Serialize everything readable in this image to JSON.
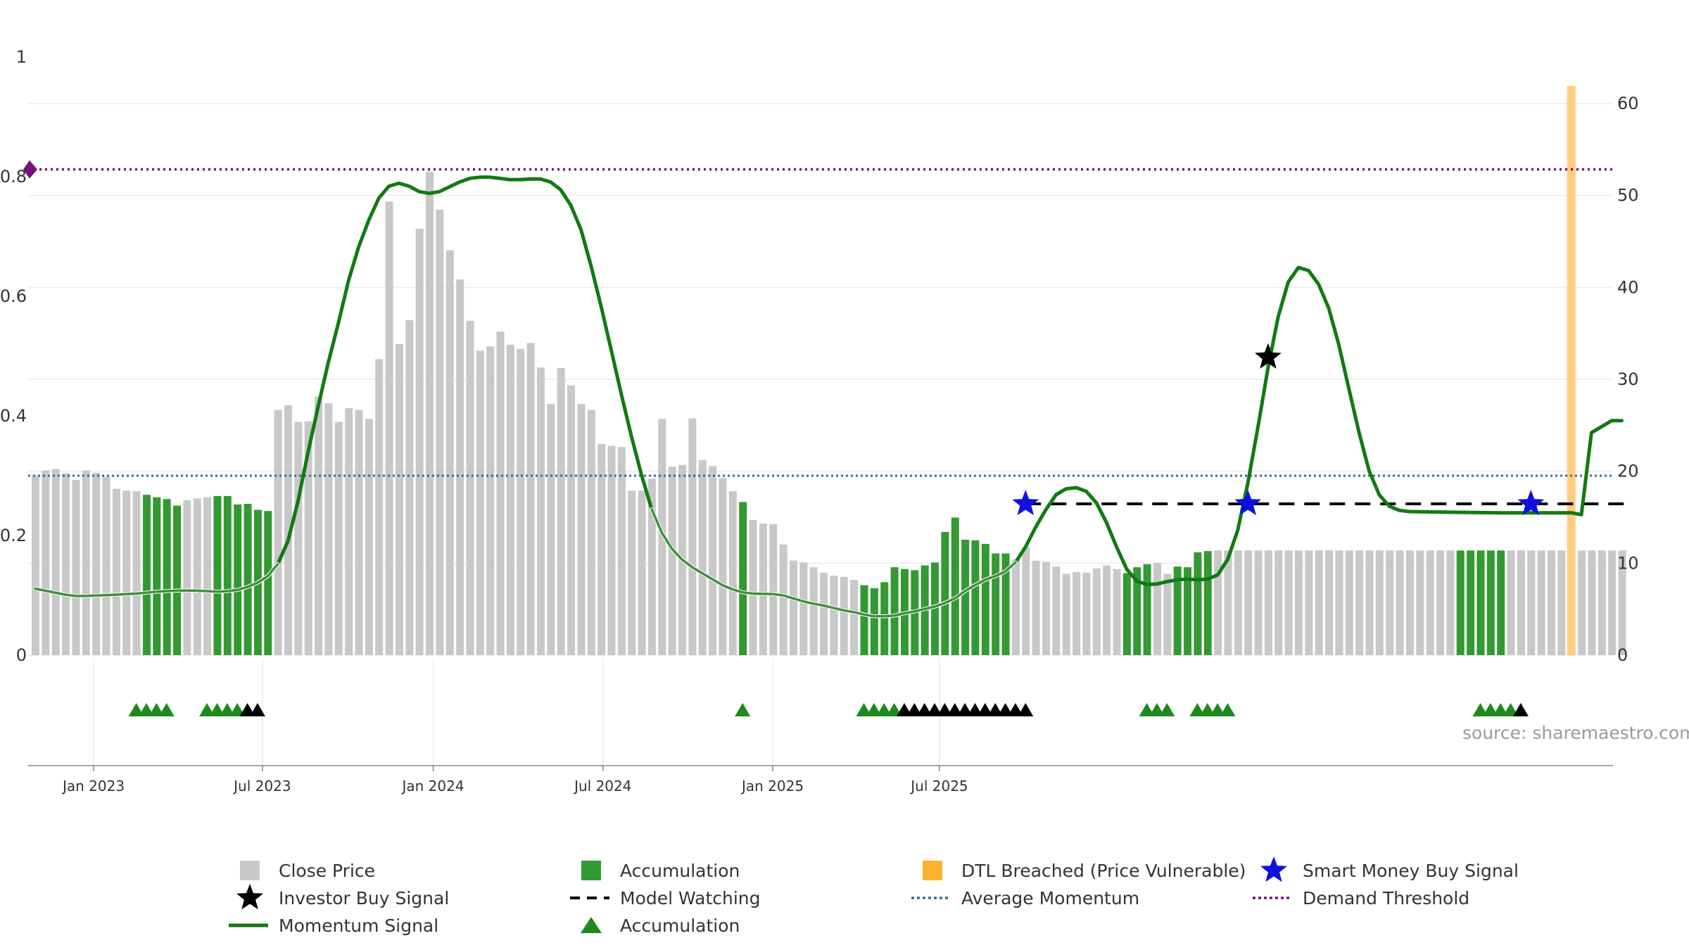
{
  "chart_data": {
    "type": "bar",
    "source_text": "source: sharemaestro.com",
    "left_axis": {
      "ticks": [
        "0",
        "0.2",
        "0.4",
        "0.6",
        "0.8",
        "1"
      ],
      "range": [
        0,
        1
      ]
    },
    "right_axis": {
      "ticks": [
        "0",
        "10",
        "20",
        "30",
        "40",
        "50",
        "60"
      ],
      "range": [
        0,
        60
      ]
    },
    "x_axis": {
      "ticks": [
        "Jan 2023",
        "Jul 2023",
        "Jan 2024",
        "Jul 2024",
        "Jan 2025",
        "Jul 2025"
      ]
    },
    "colors": {
      "close_price": "#c8c8c8",
      "accumulation": "#339933",
      "dtl_breached": "#ffcc80",
      "momentum": "#117a11",
      "average_momentum": "#2e6e96",
      "demand_threshold": "#77107a",
      "smart_money": "#1010dd",
      "investor": "#000000"
    },
    "bars": {
      "values": [
        0.3,
        0.309,
        0.311,
        0.304,
        0.293,
        0.309,
        0.305,
        0.298,
        0.278,
        0.275,
        0.274,
        0.268,
        0.264,
        0.261,
        0.25,
        0.259,
        0.262,
        0.264,
        0.266,
        0.266,
        0.252,
        0.253,
        0.243,
        0.241,
        0.41,
        0.418,
        0.39,
        0.391,
        0.432,
        0.421,
        0.39,
        0.413,
        0.41,
        0.395,
        0.495,
        0.758,
        0.52,
        0.56,
        0.713,
        0.808,
        0.745,
        0.677,
        0.628,
        0.559,
        0.509,
        0.516,
        0.541,
        0.519,
        0.512,
        0.522,
        0.481,
        0.42,
        0.48,
        0.451,
        0.42,
        0.41,
        0.353,
        0.35,
        0.348,
        0.275,
        0.275,
        0.295,
        0.395,
        0.315,
        0.318,
        0.396,
        0.326,
        0.316,
        0.296,
        0.274,
        0.256,
        0.226,
        0.22,
        0.219,
        0.185,
        0.158,
        0.155,
        0.147,
        0.138,
        0.133,
        0.131,
        0.126,
        0.117,
        0.112,
        0.122,
        0.147,
        0.144,
        0.142,
        0.15,
        0.155,
        0.206,
        0.23,
        0.193,
        0.192,
        0.186,
        0.17,
        0.17,
        0.16,
        0.18,
        0.158,
        0.156,
        0.148,
        0.136,
        0.139,
        0.138,
        0.145,
        0.15,
        0.144,
        0.137,
        0.147,
        0.152,
        0.154,
        0.136,
        0.148,
        0.147,
        0.172,
        0.174,
        0.175,
        0.175,
        0.175,
        0.175,
        0.175,
        0.175,
        0.175,
        0.175,
        0.175,
        0.175,
        0.175,
        0.175,
        0.175,
        0.175,
        0.175,
        0.175,
        0.175,
        0.175,
        0.175,
        0.175,
        0.175,
        0.175,
        0.175,
        0.175,
        0.175,
        0.175,
        0.175,
        0.175,
        0.175,
        0.175,
        0.175,
        0.175,
        0.175,
        0.175,
        0.175,
        0.175,
        0.175,
        0.175,
        0.175,
        0.175,
        0.175
      ],
      "accumulation_flags": [
        0,
        0,
        0,
        0,
        0,
        0,
        0,
        0,
        0,
        0,
        0,
        1,
        1,
        1,
        1,
        0,
        0,
        0,
        1,
        1,
        1,
        1,
        1,
        1,
        0,
        0,
        0,
        0,
        0,
        0,
        0,
        0,
        0,
        0,
        0,
        0,
        0,
        0,
        0,
        0,
        0,
        0,
        0,
        0,
        0,
        0,
        0,
        0,
        0,
        0,
        0,
        0,
        0,
        0,
        0,
        0,
        0,
        0,
        0,
        0,
        0,
        0,
        0,
        0,
        0,
        0,
        0,
        0,
        0,
        0,
        1,
        0,
        0,
        0,
        0,
        0,
        0,
        0,
        0,
        0,
        0,
        0,
        1,
        1,
        1,
        1,
        1,
        1,
        1,
        1,
        1,
        1,
        1,
        1,
        1,
        1,
        1,
        0,
        0,
        0,
        0,
        0,
        0,
        0,
        0,
        0,
        0,
        0,
        1,
        1,
        1,
        0,
        0,
        1,
        1,
        1,
        1,
        0,
        0,
        0,
        0,
        0,
        0,
        0,
        0,
        0,
        0,
        0,
        0,
        0,
        0,
        0,
        0,
        0,
        0,
        0,
        0,
        0,
        0,
        0,
        0,
        1,
        1,
        1,
        1,
        1,
        0,
        0,
        0,
        0,
        0,
        0,
        0,
        0,
        0,
        0
      ],
      "dtl_breached_index": 152
    },
    "momentum_signal": [
      [
        0,
        0.111
      ],
      [
        3,
        0.101
      ],
      [
        4,
        0.099
      ],
      [
        5,
        0.099
      ],
      [
        8,
        0.101
      ],
      [
        9,
        0.102
      ],
      [
        10,
        0.103
      ],
      [
        12,
        0.106
      ],
      [
        14,
        0.108
      ],
      [
        16,
        0.108
      ],
      [
        18,
        0.106
      ],
      [
        19,
        0.107
      ],
      [
        20,
        0.109
      ],
      [
        21,
        0.114
      ],
      [
        22,
        0.121
      ],
      [
        23,
        0.132
      ],
      [
        24,
        0.152
      ],
      [
        25,
        0.19
      ],
      [
        26,
        0.257
      ],
      [
        27,
        0.339
      ],
      [
        28,
        0.416
      ],
      [
        29,
        0.489
      ],
      [
        30,
        0.555
      ],
      [
        31,
        0.626
      ],
      [
        32,
        0.682
      ],
      [
        33,
        0.727
      ],
      [
        34,
        0.764
      ],
      [
        35,
        0.784
      ],
      [
        36,
        0.789
      ],
      [
        37,
        0.784
      ],
      [
        38,
        0.775
      ],
      [
        39,
        0.772
      ],
      [
        40,
        0.775
      ],
      [
        41,
        0.783
      ],
      [
        42,
        0.791
      ],
      [
        43,
        0.797
      ],
      [
        44,
        0.799
      ],
      [
        45,
        0.799
      ],
      [
        46,
        0.797
      ],
      [
        47,
        0.795
      ],
      [
        48,
        0.795
      ],
      [
        49,
        0.796
      ],
      [
        50,
        0.796
      ],
      [
        51,
        0.791
      ],
      [
        52,
        0.778
      ],
      [
        53,
        0.752
      ],
      [
        54,
        0.712
      ],
      [
        55,
        0.651
      ],
      [
        56,
        0.583
      ],
      [
        57,
        0.51
      ],
      [
        58,
        0.436
      ],
      [
        59,
        0.366
      ],
      [
        60,
        0.301
      ],
      [
        61,
        0.244
      ],
      [
        62,
        0.205
      ],
      [
        63,
        0.178
      ],
      [
        64,
        0.16
      ],
      [
        65,
        0.147
      ],
      [
        66,
        0.137
      ],
      [
        67,
        0.127
      ],
      [
        68,
        0.117
      ],
      [
        69,
        0.11
      ],
      [
        70,
        0.105
      ],
      [
        71,
        0.103
      ],
      [
        73,
        0.102
      ],
      [
        74,
        0.1
      ],
      [
        75,
        0.095
      ],
      [
        76,
        0.09
      ],
      [
        77,
        0.086
      ],
      [
        78,
        0.083
      ],
      [
        79,
        0.079
      ],
      [
        80,
        0.075
      ],
      [
        81,
        0.072
      ],
      [
        82,
        0.068
      ],
      [
        83,
        0.065
      ],
      [
        84,
        0.065
      ],
      [
        85,
        0.066
      ],
      [
        86,
        0.07
      ],
      [
        87,
        0.073
      ],
      [
        88,
        0.077
      ],
      [
        89,
        0.081
      ],
      [
        90,
        0.087
      ],
      [
        91,
        0.095
      ],
      [
        92,
        0.107
      ],
      [
        93,
        0.117
      ],
      [
        94,
        0.126
      ],
      [
        95,
        0.132
      ],
      [
        96,
        0.14
      ],
      [
        97,
        0.155
      ],
      [
        98,
        0.181
      ],
      [
        99,
        0.214
      ],
      [
        100,
        0.243
      ],
      [
        101,
        0.268
      ],
      [
        102,
        0.278
      ],
      [
        103,
        0.28
      ],
      [
        104,
        0.274
      ],
      [
        105,
        0.255
      ],
      [
        106,
        0.222
      ],
      [
        107,
        0.181
      ],
      [
        108,
        0.144
      ],
      [
        109,
        0.124
      ],
      [
        110,
        0.118
      ],
      [
        111,
        0.119
      ],
      [
        112,
        0.123
      ],
      [
        113,
        0.126
      ],
      [
        114,
        0.127
      ],
      [
        115,
        0.126
      ],
      [
        116,
        0.127
      ],
      [
        117,
        0.134
      ],
      [
        118,
        0.16
      ],
      [
        119,
        0.209
      ],
      [
        120,
        0.288
      ],
      [
        121,
        0.382
      ],
      [
        122,
        0.481
      ],
      [
        123,
        0.566
      ],
      [
        124,
        0.624
      ],
      [
        125,
        0.648
      ],
      [
        126,
        0.643
      ],
      [
        127,
        0.62
      ],
      [
        128,
        0.58
      ],
      [
        129,
        0.519
      ],
      [
        130,
        0.445
      ],
      [
        131,
        0.372
      ],
      [
        132,
        0.308
      ],
      [
        133,
        0.268
      ],
      [
        134,
        0.249
      ],
      [
        135,
        0.242
      ],
      [
        136,
        0.24
      ],
      [
        140,
        0.239
      ],
      [
        145,
        0.238
      ],
      [
        152,
        0.238
      ],
      [
        153,
        0.235
      ],
      [
        154,
        0.372
      ],
      [
        155,
        0.382
      ],
      [
        156,
        0.392
      ],
      [
        157,
        0.392
      ]
    ],
    "average_momentum": 0.3,
    "demand_threshold": 0.812,
    "model_watching": {
      "from_index": 98,
      "to_index": 157,
      "value": 0.253
    },
    "smart_money_buy_signals": [
      [
        98,
        0.253
      ],
      [
        120,
        0.253
      ],
      [
        148,
        0.253
      ]
    ],
    "investor_buy_signals": [
      [
        122,
        0.498
      ]
    ],
    "accumulation_markers": {
      "green": [
        10,
        11,
        12,
        13,
        17,
        18,
        19,
        20,
        70,
        82,
        83,
        84,
        85,
        110,
        111,
        112,
        115,
        116,
        117,
        118,
        143,
        144,
        145,
        146
      ],
      "black": [
        21,
        22,
        86,
        87,
        88,
        89,
        90,
        91,
        92,
        93,
        94,
        95,
        96,
        97,
        98,
        147
      ]
    },
    "legend": [
      {
        "label": "Close Price",
        "symbol": "square-gray"
      },
      {
        "label": "Accumulation",
        "symbol": "square-green"
      },
      {
        "label": "DTL Breached (Price Vulnerable)",
        "symbol": "square-orange"
      },
      {
        "label": "Smart Money Buy Signal",
        "symbol": "star-blue"
      },
      {
        "label": "Investor Buy Signal",
        "symbol": "star-black"
      },
      {
        "label": "Model Watching",
        "symbol": "dashed-black"
      },
      {
        "label": "Average Momentum",
        "symbol": "dotted-blue"
      },
      {
        "label": "Demand Threshold",
        "symbol": "dotted-purple"
      },
      {
        "label": "Momentum Signal",
        "symbol": "line-green"
      },
      {
        "label": "Accumulation",
        "symbol": "triangle-green"
      }
    ]
  }
}
